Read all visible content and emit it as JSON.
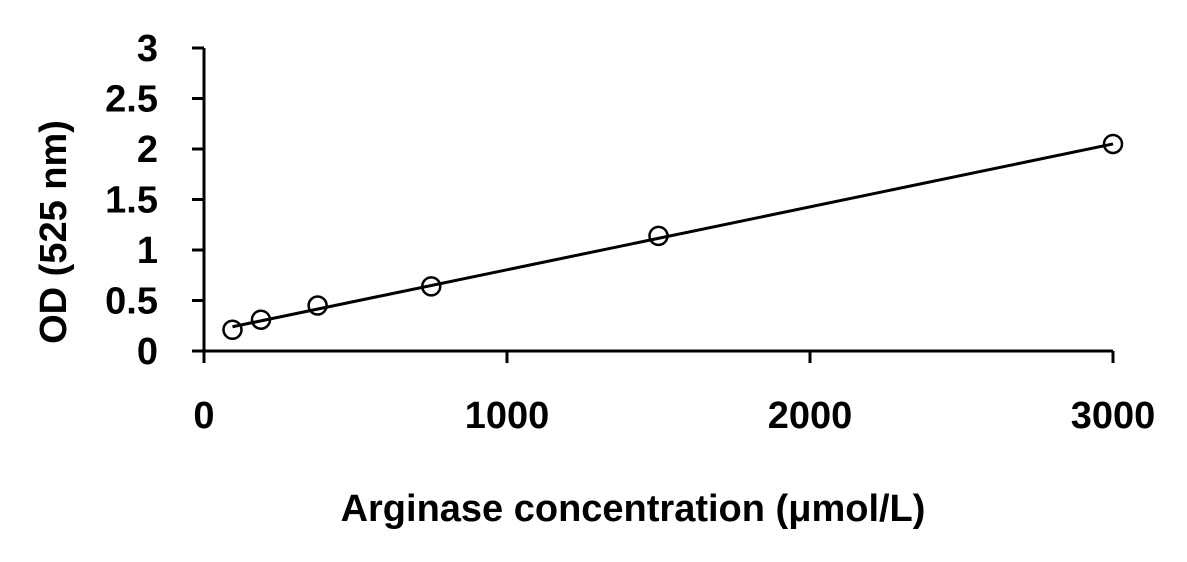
{
  "chart_data": {
    "type": "scatter",
    "title": "",
    "xlabel": "Arginase concentration (μmol/L)",
    "ylabel": "OD (525 nm)",
    "xlim": [
      0,
      3000
    ],
    "ylim": [
      0,
      3
    ],
    "x_ticks": [
      "0",
      "1000",
      "2000",
      "3000"
    ],
    "y_ticks": [
      "0",
      "0.5",
      "1",
      "1.5",
      "2",
      "2.5",
      "3"
    ],
    "grid": false,
    "legend": "none",
    "series": [
      {
        "x": [
          94,
          188,
          375,
          750,
          1500,
          3000
        ],
        "y": [
          0.21,
          0.31,
          0.45,
          0.64,
          1.14,
          2.05
        ],
        "marker": "open-circle",
        "trendline": {
          "type": "linear",
          "x_range": [
            94,
            3000
          ],
          "y_range": [
            0.24,
            2.05
          ]
        }
      }
    ],
    "colors": {
      "marker": "#000000",
      "line": "#000000",
      "axis": "#000000"
    }
  }
}
